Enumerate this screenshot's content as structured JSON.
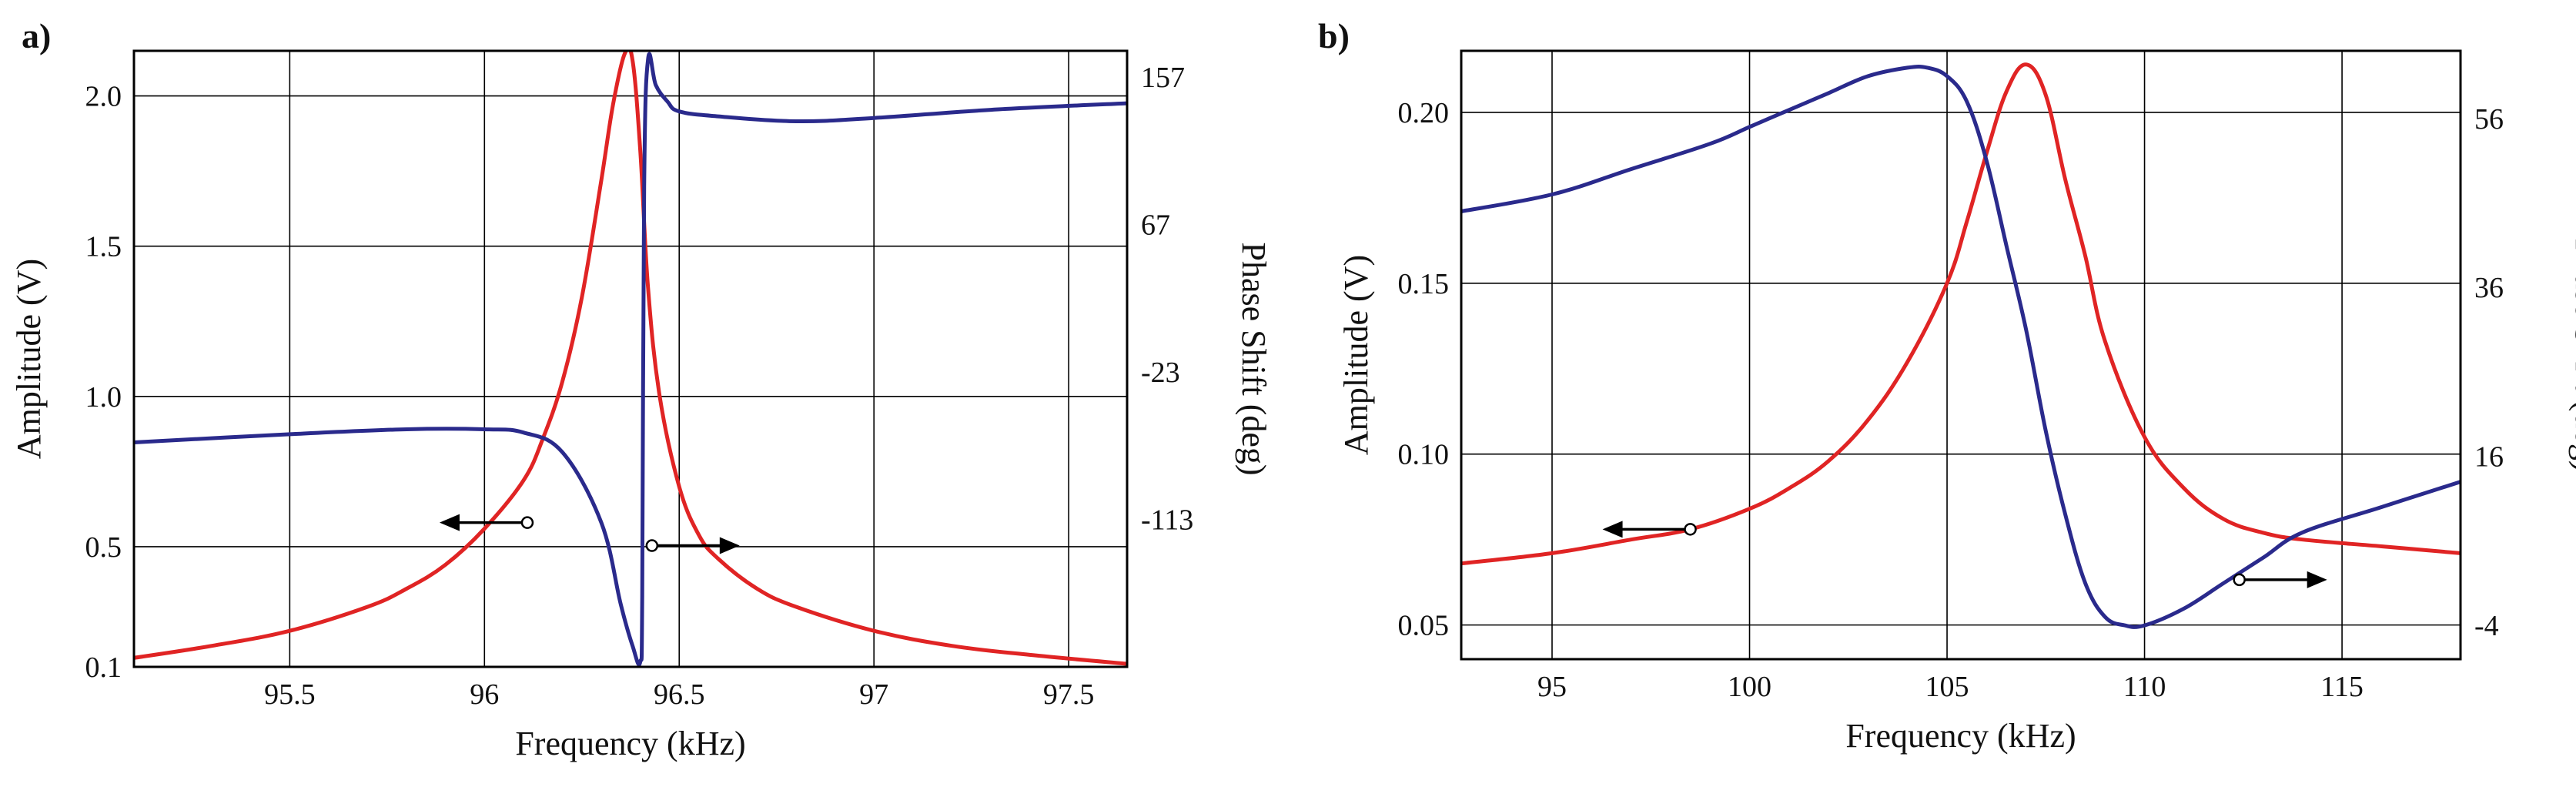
{
  "chart_data": [
    {
      "panel_label": "a)",
      "type": "line",
      "xlabel": "Frequency (kHz)",
      "ylabel_left": "Amplitude (V)",
      "ylabel_right": "Phase Shift (deg)",
      "xlim": [
        95.1,
        97.65
      ],
      "ylim_left": [
        0.1,
        2.15
      ],
      "ylim_right": [
        -203,
        173
      ],
      "x_ticks": [
        95.5,
        96,
        96.5,
        97,
        97.5
      ],
      "x_tick_labels": [
        "95.5",
        "96",
        "96.5",
        "97",
        "97.5"
      ],
      "y_left_ticks": [
        0.1,
        0.5,
        1.0,
        1.5,
        2.0
      ],
      "y_left_tick_labels": [
        "0.1",
        "0.5",
        "1.0",
        "1.5",
        "2.0"
      ],
      "y_right_ticks": [
        -113,
        -23,
        67,
        157
      ],
      "y_right_tick_labels": [
        "-113",
        "-23",
        "67",
        "157"
      ],
      "grid": true,
      "colors": {
        "amplitude": "#e02424",
        "phase": "#2a2a8c"
      },
      "series": [
        {
          "name": "Amplitude",
          "axis": "left",
          "x": [
            95.1,
            95.3,
            95.5,
            95.7,
            95.8,
            95.9,
            96.0,
            96.1,
            96.15,
            96.2,
            96.25,
            96.3,
            96.33,
            96.36,
            96.38,
            96.4,
            96.42,
            96.45,
            96.5,
            96.55,
            96.6,
            96.7,
            96.8,
            97.0,
            97.2,
            97.4,
            97.65
          ],
          "values": [
            0.13,
            0.17,
            0.22,
            0.3,
            0.36,
            0.44,
            0.56,
            0.72,
            0.86,
            1.05,
            1.33,
            1.72,
            1.97,
            2.14,
            2.12,
            1.82,
            1.36,
            1.0,
            0.7,
            0.54,
            0.46,
            0.36,
            0.3,
            0.22,
            0.17,
            0.14,
            0.11
          ]
        },
        {
          "name": "Phase Shift",
          "axis": "right",
          "x": [
            95.1,
            95.5,
            95.8,
            96.0,
            96.1,
            96.2,
            96.3,
            96.35,
            96.38,
            96.4,
            96.405,
            96.41,
            96.42,
            96.44,
            96.47,
            96.5,
            96.6,
            96.8,
            97.0,
            97.3,
            97.65
          ],
          "values": [
            -66,
            -61,
            -58,
            -58,
            -60,
            -72,
            -115,
            -165,
            -190,
            -200,
            -160,
            90,
            168,
            152,
            142,
            136,
            133,
            130,
            132,
            137,
            141
          ]
        }
      ],
      "annotations": [
        {
          "text": "arrow left",
          "series": "Amplitude",
          "x": 96.11,
          "y": 0.58,
          "direction": "left"
        },
        {
          "text": "arrow right",
          "series": "Phase Shift",
          "x": 96.43,
          "y": -129,
          "direction": "right"
        }
      ]
    },
    {
      "panel_label": "b)",
      "type": "line",
      "xlabel": "Frequency (kHz)",
      "ylabel_left": "Amplitude (V)",
      "ylabel_right": "Phase Shift (deg)",
      "xlim": [
        92.7,
        118
      ],
      "ylim_left": [
        0.04,
        0.218
      ],
      "ylim_right": [
        -8,
        64
      ],
      "x_ticks": [
        95,
        100,
        105,
        110,
        115
      ],
      "x_tick_labels": [
        "95",
        "100",
        "105",
        "110",
        "115"
      ],
      "y_left_ticks": [
        0.05,
        0.1,
        0.15,
        0.2
      ],
      "y_left_tick_labels": [
        "0.05",
        "0.10",
        "0.15",
        "0.20"
      ],
      "y_right_ticks": [
        -4,
        16,
        36,
        56
      ],
      "y_right_tick_labels": [
        "-4",
        "16",
        "36",
        "56"
      ],
      "grid": true,
      "colors": {
        "amplitude": "#e02424",
        "phase": "#2a2a8c"
      },
      "series": [
        {
          "name": "Amplitude",
          "axis": "left",
          "x": [
            92.7,
            95,
            97,
            98.5,
            100,
            101,
            102,
            103,
            104,
            105,
            105.5,
            106,
            106.5,
            107,
            107.5,
            108,
            108.5,
            109,
            110,
            111,
            112,
            113,
            114,
            116,
            118
          ],
          "values": [
            0.068,
            0.071,
            0.075,
            0.078,
            0.084,
            0.09,
            0.098,
            0.11,
            0.127,
            0.15,
            0.168,
            0.188,
            0.206,
            0.214,
            0.205,
            0.18,
            0.158,
            0.133,
            0.105,
            0.09,
            0.081,
            0.077,
            0.075,
            0.073,
            0.071
          ]
        },
        {
          "name": "Phase Shift",
          "axis": "right",
          "x": [
            92.7,
            95,
            97,
            99,
            100,
            101,
            102,
            103,
            104,
            104.5,
            105,
            105.5,
            106,
            106.5,
            107,
            107.5,
            108,
            108.5,
            109,
            109.5,
            110,
            111,
            112,
            113,
            114,
            116,
            118
          ],
          "values": [
            45,
            47,
            50,
            53,
            55,
            57,
            59,
            61,
            62,
            62,
            61,
            58,
            51,
            41,
            31,
            19,
            9,
            1,
            -3,
            -4,
            -4,
            -2,
            1,
            4,
            7,
            10,
            13
          ]
        }
      ],
      "annotations": [
        {
          "text": "arrow left",
          "series": "Amplitude",
          "x": 98.5,
          "y": 0.078,
          "direction": "left"
        },
        {
          "text": "arrow right",
          "series": "Phase Shift",
          "x": 112.4,
          "y": 1.4,
          "direction": "right"
        }
      ]
    }
  ]
}
